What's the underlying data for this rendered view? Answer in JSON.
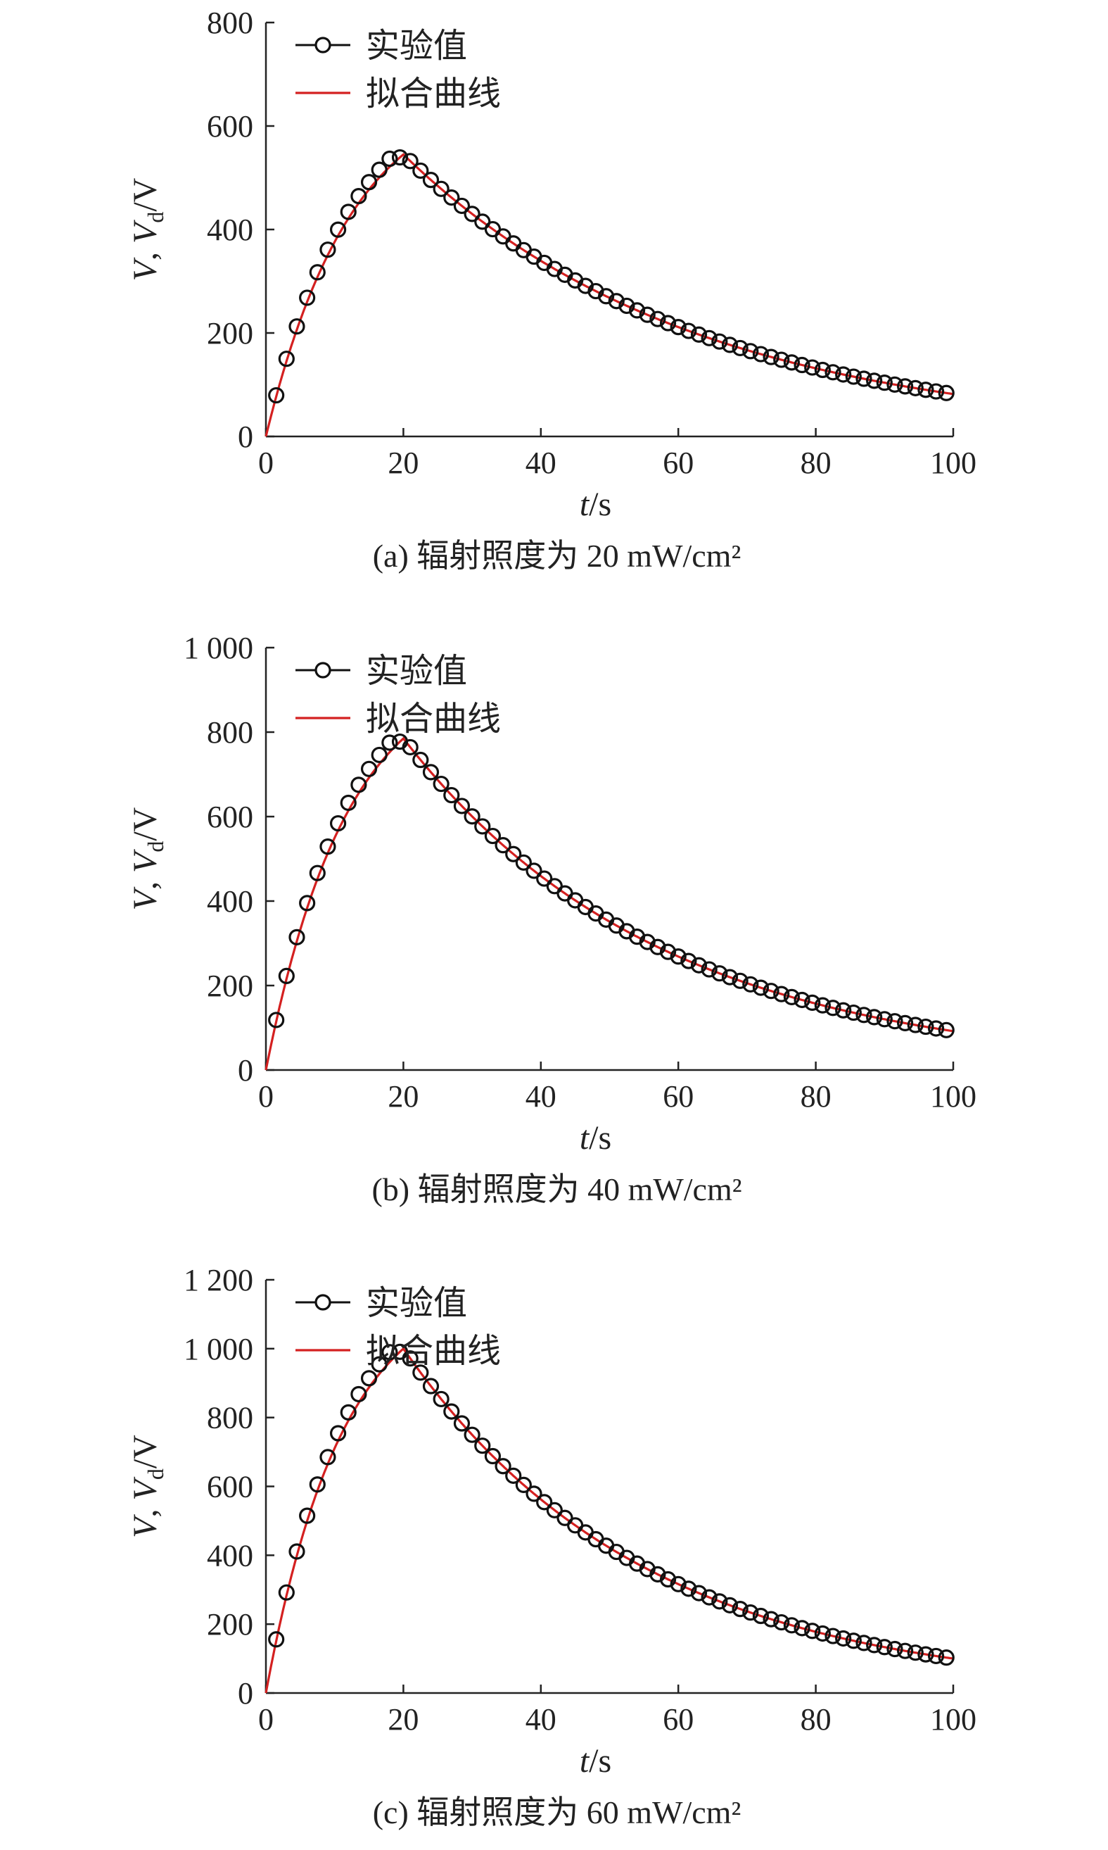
{
  "colors": {
    "experimental": "#111111",
    "fit": "#d42020",
    "axis": "#222222"
  },
  "chart_data": [
    {
      "type": "line",
      "caption": "(a) 辐射照度为 20 mW/cm²",
      "xlabel_italic": "t",
      "xlabel_unit": "/s",
      "ylabel": {
        "v1": "V",
        "sep": ", ",
        "v2": "V",
        "sub": "d",
        "unit": "/V"
      },
      "xlim": [
        0,
        100
      ],
      "ylim": [
        0,
        800
      ],
      "xticks": [
        0,
        20,
        40,
        60,
        80,
        100
      ],
      "xtick_labels": [
        "0",
        "20",
        "40",
        "60",
        "80",
        "100"
      ],
      "yticks": [
        0,
        200,
        400,
        600,
        800
      ],
      "ytick_labels": [
        "0",
        "200",
        "400",
        "600",
        "800"
      ],
      "legend": [
        "实验值",
        "拟合曲线"
      ],
      "legend_position": "top-left",
      "peak": 545,
      "rise_k": 0.08,
      "end_value": 82,
      "series": [
        {
          "name": "实验值",
          "style": "open-circles",
          "x_start": 1.5,
          "x_step": 1.5,
          "count": 66
        },
        {
          "name": "拟合曲线",
          "style": "line"
        }
      ]
    },
    {
      "type": "line",
      "caption": "(b) 辐射照度为 40 mW/cm²",
      "xlabel_italic": "t",
      "xlabel_unit": "/s",
      "ylabel": {
        "v1": "V",
        "sep": ", ",
        "v2": "V",
        "sub": "d",
        "unit": "/V"
      },
      "xlim": [
        0,
        100
      ],
      "ylim": [
        0,
        1000
      ],
      "xticks": [
        0,
        20,
        40,
        60,
        80,
        100
      ],
      "xtick_labels": [
        "0",
        "20",
        "40",
        "60",
        "80",
        "100"
      ],
      "yticks": [
        0,
        200,
        400,
        600,
        800,
        1000
      ],
      "ytick_labels": [
        "0",
        "200",
        "400",
        "600",
        "800",
        "1 000"
      ],
      "legend": [
        "实验值",
        "拟合曲线"
      ],
      "legend_position": "top-left",
      "peak": 785,
      "rise_k": 0.085,
      "end_value": 92,
      "series": [
        {
          "name": "实验值",
          "style": "open-circles",
          "x_start": 1.5,
          "x_step": 1.5,
          "count": 66
        },
        {
          "name": "拟合曲线",
          "style": "line"
        }
      ]
    },
    {
      "type": "line",
      "caption": "(c) 辐射照度为 60 mW/cm²",
      "xlabel_italic": "t",
      "xlabel_unit": "/s",
      "ylabel": {
        "v1": "V",
        "sep": ", ",
        "v2": "V",
        "sub": "d",
        "unit": "/V"
      },
      "xlim": [
        0,
        100
      ],
      "ylim": [
        0,
        1200
      ],
      "xticks": [
        0,
        20,
        40,
        60,
        80,
        100
      ],
      "xtick_labels": [
        "0",
        "20",
        "40",
        "60",
        "80",
        "100"
      ],
      "yticks": [
        0,
        200,
        400,
        600,
        800,
        1000,
        1200
      ],
      "ytick_labels": [
        "0",
        "200",
        "400",
        "600",
        "800",
        "1 000",
        "1 200"
      ],
      "legend": [
        "实验值",
        "拟合曲线"
      ],
      "legend_position": "top-left",
      "peak": 1000,
      "rise_k": 0.09,
      "end_value": 100,
      "series": [
        {
          "name": "实验值",
          "style": "open-circles",
          "x_start": 1.5,
          "x_step": 1.5,
          "count": 66
        },
        {
          "name": "拟合曲线",
          "style": "line"
        }
      ]
    }
  ]
}
